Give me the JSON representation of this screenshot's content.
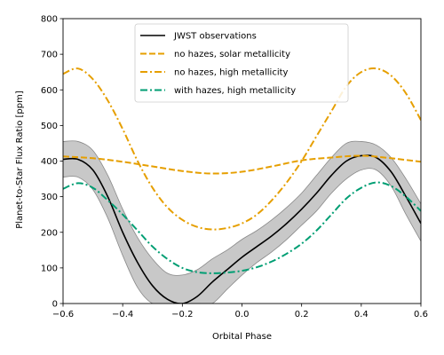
{
  "chart_data": {
    "type": "line",
    "xlabel": "Orbital Phase",
    "ylabel": "Planet-to-Star Flux Ratio [ppm]",
    "xlim": [
      -0.6,
      0.6
    ],
    "ylim": [
      0,
      800
    ],
    "xticks": [
      -0.6,
      -0.4,
      -0.2,
      0.0,
      0.2,
      0.4,
      0.6
    ],
    "xtick_labels": [
      "−0.6",
      "−0.4",
      "−0.2",
      "0.0",
      "0.2",
      "0.4",
      "0.6"
    ],
    "yticks": [
      0,
      100,
      200,
      300,
      400,
      500,
      600,
      700,
      800
    ],
    "ytick_labels": [
      "0",
      "100",
      "200",
      "300",
      "400",
      "500",
      "600",
      "700",
      "800"
    ],
    "grid": false,
    "legend_position": "top-center",
    "series": [
      {
        "name": "JWST observations",
        "style": "solid",
        "color": "#000000",
        "band_color": "#b0b0b0",
        "x": [
          -0.6,
          -0.55,
          -0.5,
          -0.45,
          -0.4,
          -0.35,
          -0.3,
          -0.25,
          -0.2,
          -0.15,
          -0.1,
          -0.05,
          0.0,
          0.05,
          0.1,
          0.15,
          0.2,
          0.25,
          0.3,
          0.35,
          0.4,
          0.45,
          0.5,
          0.55,
          0.6
        ],
        "y": [
          405,
          405,
          375,
          300,
          200,
          115,
          50,
          12,
          0,
          20,
          60,
          95,
          130,
          160,
          190,
          225,
          265,
          310,
          360,
          400,
          415,
          410,
          370,
          300,
          225
        ],
        "upper": [
          455,
          455,
          430,
          360,
          265,
          185,
          125,
          85,
          80,
          95,
          125,
          150,
          180,
          205,
          235,
          270,
          310,
          360,
          410,
          450,
          455,
          445,
          410,
          350,
          280
        ],
        "lower": [
          355,
          355,
          320,
          240,
          135,
          45,
          0,
          0,
          0,
          0,
          0,
          40,
          80,
          115,
          145,
          180,
          220,
          260,
          310,
          350,
          375,
          375,
          330,
          250,
          175
        ]
      },
      {
        "name": "no hazes, solar metallicity",
        "style": "dashed",
        "color": "#e69f00",
        "x": [
          -0.6,
          -0.5,
          -0.4,
          -0.3,
          -0.2,
          -0.1,
          0.0,
          0.1,
          0.2,
          0.3,
          0.4,
          0.5,
          0.6
        ],
        "y": [
          413,
          408,
          398,
          385,
          372,
          365,
          370,
          385,
          402,
          410,
          415,
          408,
          398
        ]
      },
      {
        "name": "no hazes, high metallicity",
        "style": "dashdot",
        "color": "#e69f00",
        "x": [
          -0.6,
          -0.55,
          -0.5,
          -0.45,
          -0.4,
          -0.35,
          -0.3,
          -0.25,
          -0.2,
          -0.15,
          -0.1,
          -0.05,
          0.0,
          0.05,
          0.1,
          0.15,
          0.2,
          0.25,
          0.3,
          0.35,
          0.4,
          0.45,
          0.5,
          0.55,
          0.6
        ],
        "y": [
          645,
          660,
          630,
          570,
          490,
          400,
          325,
          270,
          235,
          215,
          208,
          212,
          225,
          250,
          290,
          340,
          400,
          470,
          540,
          610,
          650,
          660,
          640,
          590,
          515
        ]
      },
      {
        "name": "with hazes, high metallicity",
        "style": "dashdot",
        "color": "#009e73",
        "x": [
          -0.6,
          -0.55,
          -0.5,
          -0.45,
          -0.4,
          -0.35,
          -0.3,
          -0.25,
          -0.2,
          -0.15,
          -0.1,
          -0.05,
          0.0,
          0.05,
          0.1,
          0.15,
          0.2,
          0.25,
          0.3,
          0.35,
          0.4,
          0.45,
          0.5,
          0.55,
          0.6
        ],
        "y": [
          322,
          338,
          325,
          290,
          250,
          205,
          160,
          125,
          100,
          88,
          85,
          87,
          92,
          102,
          118,
          140,
          168,
          205,
          250,
          295,
          325,
          340,
          330,
          300,
          260
        ]
      }
    ]
  }
}
